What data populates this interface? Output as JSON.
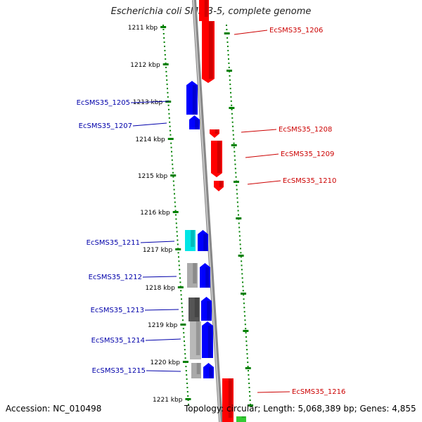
{
  "title": "Escherichia coli SMS-3-5, complete genome",
  "accession_text": "Accession: NC_010498",
  "topology_text": "Topology: circular; Length: 5,068,389 bp; Genes: 4,855",
  "colors": {
    "forward_strand": "#ff0000",
    "reverse_strand": "#0000ff",
    "tick_dots": "#008000",
    "backbone": "#888888",
    "label_red": "#cc0000",
    "label_blue": "#0000aa",
    "cyan_feature": "#00e5e5",
    "gray_feature": "#aaaaaa",
    "dark_feature": "#555555",
    "green_feature": "#33cc33"
  },
  "ticks": [
    "1211 kbp",
    "1212 kbp",
    "1213 kbp",
    "1214 kbp",
    "1215 kbp",
    "1216 kbp",
    "1217 kbp",
    "1218 kbp",
    "1219 kbp",
    "1220 kbp",
    "1221 kbp"
  ],
  "genes": [
    {
      "label": "EcSMS35_1206",
      "strand": "forward"
    },
    {
      "label": "EcSMS35_1205",
      "strand": "reverse"
    },
    {
      "label": "EcSMS35_1207",
      "strand": "reverse"
    },
    {
      "label": "EcSMS35_1208",
      "strand": "forward"
    },
    {
      "label": "EcSMS35_1209",
      "strand": "forward"
    },
    {
      "label": "EcSMS35_1210",
      "strand": "forward"
    },
    {
      "label": "EcSMS35_1211",
      "strand": "reverse"
    },
    {
      "label": "EcSMS35_1212",
      "strand": "reverse"
    },
    {
      "label": "EcSMS35_1213",
      "strand": "reverse"
    },
    {
      "label": "EcSMS35_1214",
      "strand": "reverse"
    },
    {
      "label": "EcSMS35_1215",
      "strand": "reverse"
    },
    {
      "label": "EcSMS35_1216",
      "strand": "forward"
    }
  ]
}
